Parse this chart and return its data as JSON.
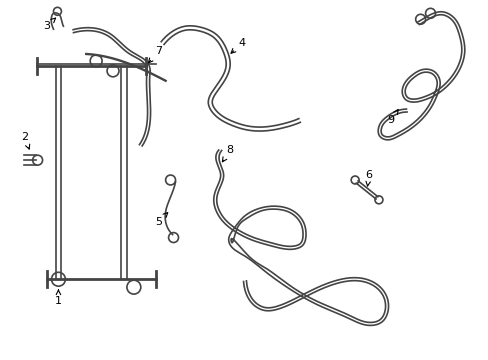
{
  "background_color": "#ffffff",
  "line_color": "#444444",
  "lw": 1.2,
  "figsize": [
    4.89,
    3.6
  ],
  "dpi": 100
}
